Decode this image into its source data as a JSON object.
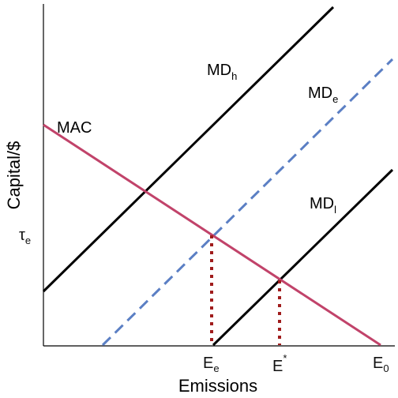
{
  "axes": {
    "x_title": "Emissions",
    "y_title": "Capital/$"
  },
  "curves": {
    "mac": {
      "label": "MAC",
      "color": "#c1436a"
    },
    "md_h": {
      "label": "MD",
      "sub": "h",
      "color": "#000000"
    },
    "md_e": {
      "label": "MD",
      "sub": "e",
      "color": "#5b7fc4"
    },
    "md_l": {
      "label": "MD",
      "sub": "l",
      "color": "#000000"
    }
  },
  "ticks": {
    "y_tau": {
      "label": "τ",
      "sub": "e"
    },
    "x_ee": {
      "label": "E",
      "sub": "e"
    },
    "x_estar": {
      "label": "E",
      "sup": "*"
    },
    "x_e0": {
      "label": "E",
      "sub": "0"
    }
  },
  "guides": {
    "color": "#a01c1c"
  }
}
